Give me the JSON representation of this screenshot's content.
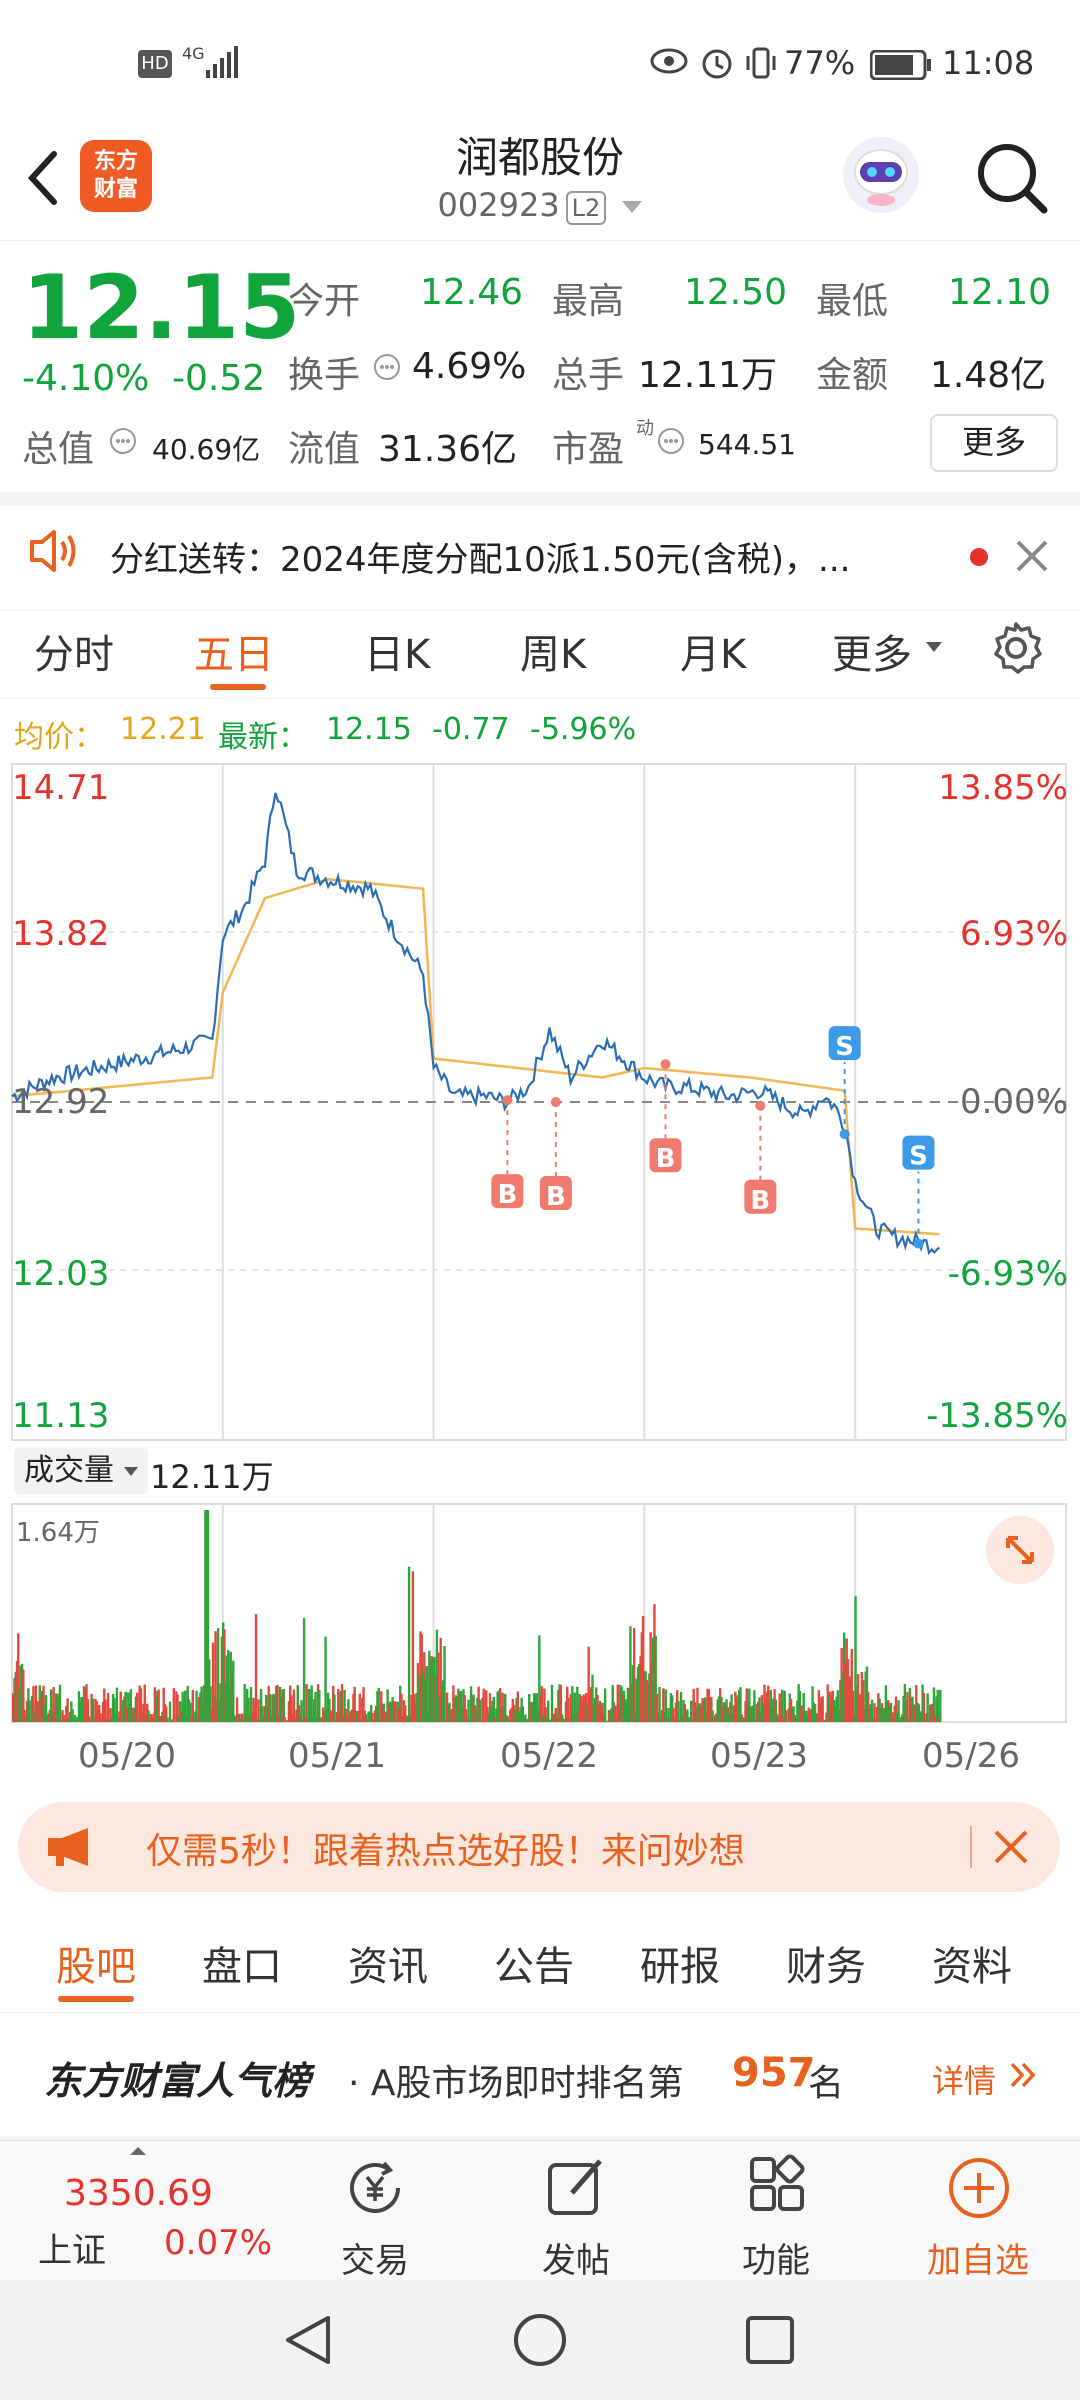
{
  "status_bar": {
    "hd": "HD",
    "net": "4G",
    "battery": "77%",
    "time": "11:08"
  },
  "header": {
    "logo_line1": "东方",
    "logo_line2": "财富",
    "stock_name": "润都股份",
    "stock_code": "002923",
    "level": "L2"
  },
  "quote": {
    "price": "12.15",
    "change_pct": "-4.10%",
    "change_amt": "-0.52",
    "open_label": "今开",
    "open": "12.46",
    "high_label": "最高",
    "high": "12.50",
    "low_label": "最低",
    "low": "12.10",
    "turnover_label": "换手",
    "turnover": "4.69%",
    "volume_label": "总手",
    "volume": "12.11万",
    "amount_label": "金额",
    "amount": "1.48亿",
    "mcap_label": "总值",
    "mcap": "40.69亿",
    "float_label": "流值",
    "float": "31.36亿",
    "pe_label": "市盈",
    "pe_sup": "动",
    "pe": "544.51",
    "more": "更多"
  },
  "notice": {
    "text": "分红送转：2024年度分配10派1.50元(含税)，..."
  },
  "tabs": [
    "分时",
    "五日",
    "日K",
    "周K",
    "月K",
    "更多"
  ],
  "chart_head": {
    "avg_label": "均价：",
    "avg": "12.21",
    "latest_label": "最新：",
    "latest": "12.15",
    "chg": "-0.77",
    "chg_pct": "-5.96%"
  },
  "chart_data": {
    "type": "line",
    "days": [
      "05/20",
      "05/21",
      "05/22",
      "05/23",
      "05/26"
    ],
    "y_left_ticks": [
      "14.71",
      "13.82",
      "12.92",
      "12.03",
      "11.13"
    ],
    "y_right_ticks": [
      "13.85%",
      "6.93%",
      "0.00%",
      "-6.93%",
      "-13.85%"
    ],
    "ylim": [
      11.13,
      14.71
    ],
    "prev_close": 12.92,
    "series": [
      {
        "name": "price",
        "x": [
          0,
          0.2,
          0.4,
          0.6,
          0.8,
          0.95,
          1.0,
          1.1,
          1.2,
          1.25,
          1.35,
          1.5,
          1.7,
          1.8,
          1.95,
          2.0,
          2.1,
          2.25,
          2.35,
          2.45,
          2.55,
          2.65,
          2.8,
          2.95,
          3.0,
          3.1,
          3.2,
          3.4,
          3.55,
          3.75,
          3.85,
          3.9,
          3.95,
          4.0,
          4.1,
          4.2,
          4.3,
          4.4
        ],
        "values": [
          12.95,
          13.05,
          13.1,
          13.15,
          13.2,
          13.25,
          13.8,
          13.95,
          14.2,
          14.6,
          14.15,
          14.1,
          14.05,
          13.85,
          13.6,
          13.1,
          12.95,
          12.95,
          12.92,
          13.0,
          13.3,
          13.05,
          13.25,
          13.1,
          13.05,
          13.0,
          13.0,
          12.95,
          12.98,
          12.85,
          12.95,
          12.9,
          12.8,
          12.5,
          12.25,
          12.2,
          12.18,
          12.15
        ]
      },
      {
        "name": "avg",
        "x": [
          0,
          0.95,
          1.0,
          1.2,
          1.5,
          1.95,
          2.0,
          2.4,
          2.8,
          3.0,
          3.5,
          3.95,
          4.0,
          4.4
        ],
        "values": [
          12.95,
          13.05,
          13.5,
          14.0,
          14.1,
          14.05,
          13.15,
          13.1,
          13.05,
          13.1,
          13.05,
          12.98,
          12.25,
          12.22
        ]
      }
    ],
    "markers": [
      {
        "type": "B",
        "x": 2.35,
        "y": 12.93
      },
      {
        "type": "B",
        "x": 2.58,
        "y": 12.92
      },
      {
        "type": "B",
        "x": 3.1,
        "y": 13.12
      },
      {
        "type": "B",
        "x": 3.55,
        "y": 12.9
      },
      {
        "type": "S",
        "x": 3.95,
        "y": 12.75
      },
      {
        "type": "S",
        "x": 4.3,
        "y": 12.17
      }
    ],
    "volume_label": "成交量",
    "volume_total": "12.11万",
    "volume_max": "1.64万"
  },
  "promo": {
    "text": "仅需5秒！跟着热点选好股！来问妙想"
  },
  "subtabs": [
    "股吧",
    "盘口",
    "资讯",
    "公告",
    "研报",
    "财务",
    "资料"
  ],
  "rank": {
    "brand": "东方财富人气榜",
    "prefix": "· A股市场即时排名第",
    "num": "957",
    "suffix": "名",
    "detail": "详情"
  },
  "bottom": {
    "index_val": "3350.69",
    "index_name": "上证",
    "index_pct": "0.07%",
    "trade": "交易",
    "post": "发帖",
    "func": "功能",
    "add": "加自选"
  },
  "colors": {
    "red": "#e5322d",
    "green": "#11a33c",
    "orange": "#e8611e",
    "line": "#2a6fb5",
    "avg": "#f0b752"
  }
}
